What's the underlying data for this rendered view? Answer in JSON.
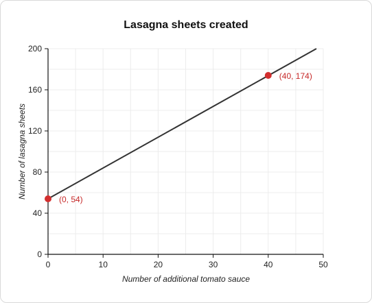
{
  "chart_data": {
    "type": "line",
    "title": "Lasagna sheets created",
    "xlabel": "Number of additional tomato sauce",
    "ylabel": "Number of lasagna sheets",
    "xlim": [
      0,
      50
    ],
    "ylim": [
      0,
      200
    ],
    "x_ticks": [
      0,
      10,
      20,
      30,
      40,
      50
    ],
    "y_ticks": [
      0,
      40,
      80,
      120,
      160,
      200
    ],
    "grid": true,
    "line": {
      "x": [
        0,
        48.75
      ],
      "y": [
        54,
        200
      ],
      "color": "#333333"
    },
    "points": [
      {
        "x": 0,
        "y": 54,
        "label": "(0, 54)"
      },
      {
        "x": 40,
        "y": 174,
        "label": "(40, 174)"
      }
    ],
    "point_color": "#d32f2f",
    "label_color": "#c62828",
    "gridline_color": "#ececec"
  }
}
